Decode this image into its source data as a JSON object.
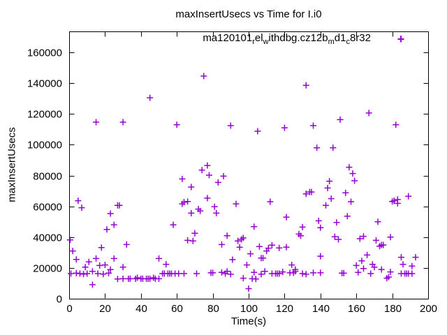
{
  "title": "maxInsertUsecs vs Time for I.i0",
  "axes": {
    "x": {
      "label": "Time(s)",
      "range": [
        0,
        200
      ],
      "ticks": [
        0,
        20,
        40,
        60,
        80,
        100,
        120,
        140,
        160,
        180,
        200
      ]
    },
    "y": {
      "label": "maxInsertUsecs",
      "range": [
        0,
        173600
      ],
      "ticks": [
        0,
        20000,
        40000,
        60000,
        80000,
        100000,
        120000,
        140000,
        160000
      ]
    }
  },
  "legend": {
    "label_plain": "ma120101_rel_withdbg.cz12b_md1_c8r32",
    "segments": [
      {
        "t": "ma120101"
      },
      {
        "t": "r",
        "sub": true
      },
      {
        "t": "el"
      },
      {
        "t": "w",
        "sub": true
      },
      {
        "t": "ithdbg.cz12b"
      },
      {
        "t": "m",
        "sub": true
      },
      {
        "t": "d1"
      },
      {
        "t": "c",
        "sub": true
      },
      {
        "t": "8r32"
      }
    ],
    "marker": "+"
  },
  "colors": {
    "marker": "#9400d3",
    "axis": "#000000",
    "text": "#000000",
    "background": "#ffffff"
  },
  "chart_data": {
    "type": "scatter",
    "title": "maxInsertUsecs vs Time for I.i0",
    "xlabel": "Time(s)",
    "ylabel": "maxInsertUsecs",
    "xlim": [
      0,
      200
    ],
    "ylim": [
      0,
      173600
    ],
    "grid": false,
    "legend_position": "top-right-inside",
    "marker_style": "plus",
    "series": [
      {
        "name": "ma120101_rel_withdbg.cz12b_md1_c8r32",
        "color": "#9400d3",
        "points": [
          [
            0.5,
            38200
          ],
          [
            1,
            16300
          ],
          [
            2,
            31000
          ],
          [
            4,
            25500
          ],
          [
            4,
            16600
          ],
          [
            5,
            63600
          ],
          [
            6,
            16300
          ],
          [
            7,
            59100
          ],
          [
            8,
            16000
          ],
          [
            9,
            20500
          ],
          [
            10,
            16300
          ],
          [
            11,
            23900
          ],
          [
            13,
            17800
          ],
          [
            13,
            9100
          ],
          [
            15,
            114700
          ],
          [
            15,
            26100
          ],
          [
            16,
            16300
          ],
          [
            17,
            21600
          ],
          [
            18,
            33200
          ],
          [
            19,
            16000
          ],
          [
            20,
            21900
          ],
          [
            21,
            45000
          ],
          [
            22,
            16600
          ],
          [
            23,
            55300
          ],
          [
            23,
            18900
          ],
          [
            25,
            48000
          ],
          [
            25,
            26100
          ],
          [
            27,
            60600
          ],
          [
            27,
            12800
          ],
          [
            28,
            60600
          ],
          [
            30,
            114700
          ],
          [
            30,
            20500
          ],
          [
            30,
            13000
          ],
          [
            32,
            35200
          ],
          [
            33,
            13000
          ],
          [
            34,
            13000
          ],
          [
            37,
            13000
          ],
          [
            38,
            13600
          ],
          [
            40,
            13000
          ],
          [
            41,
            13000
          ],
          [
            43,
            13000
          ],
          [
            44,
            13000
          ],
          [
            45,
            130500
          ],
          [
            45,
            13000
          ],
          [
            47,
            13600
          ],
          [
            48,
            13000
          ],
          [
            50,
            26100
          ],
          [
            50,
            13000
          ],
          [
            52,
            16300
          ],
          [
            53,
            16300
          ],
          [
            54,
            22300
          ],
          [
            55,
            16300
          ],
          [
            56,
            16300
          ],
          [
            57,
            16300
          ],
          [
            58,
            48000
          ],
          [
            59,
            16300
          ],
          [
            60,
            113000
          ],
          [
            61,
            16300
          ],
          [
            63,
            77800
          ],
          [
            63,
            61600
          ],
          [
            64,
            62700
          ],
          [
            64,
            16300
          ],
          [
            66,
            63100
          ],
          [
            66,
            37900
          ],
          [
            68,
            72500
          ],
          [
            68,
            55600
          ],
          [
            69,
            37500
          ],
          [
            70,
            42500
          ],
          [
            71,
            16300
          ],
          [
            72,
            58200
          ],
          [
            73,
            57000
          ],
          [
            74,
            83500
          ],
          [
            75,
            144600
          ],
          [
            77,
            86500
          ],
          [
            77,
            65300
          ],
          [
            78,
            80200
          ],
          [
            79,
            16800
          ],
          [
            80,
            16800
          ],
          [
            81,
            59800
          ],
          [
            82,
            55600
          ],
          [
            83,
            75500
          ],
          [
            85,
            35200
          ],
          [
            85,
            17100
          ],
          [
            86,
            79600
          ],
          [
            87,
            16300
          ],
          [
            88,
            40900
          ],
          [
            88,
            17800
          ],
          [
            90,
            112400
          ],
          [
            90,
            15900
          ],
          [
            91,
            25400
          ],
          [
            93,
            61600
          ],
          [
            94,
            37500
          ],
          [
            95,
            33400
          ],
          [
            96,
            38500
          ],
          [
            97,
            39500
          ],
          [
            97,
            13300
          ],
          [
            99,
            21900
          ],
          [
            100,
            6500
          ],
          [
            101,
            29200
          ],
          [
            102,
            13000
          ],
          [
            103,
            46800
          ],
          [
            103,
            17100
          ],
          [
            104,
            12800
          ],
          [
            105,
            108800
          ],
          [
            106,
            33900
          ],
          [
            107,
            26400
          ],
          [
            107,
            15900
          ],
          [
            108,
            26400
          ],
          [
            109,
            17800
          ],
          [
            110,
            31000
          ],
          [
            111,
            32800
          ],
          [
            112,
            63000
          ],
          [
            113,
            34800
          ],
          [
            113,
            16300
          ],
          [
            115,
            16300
          ],
          [
            116,
            16300
          ],
          [
            117,
            33000
          ],
          [
            117,
            16300
          ],
          [
            119,
            17400
          ],
          [
            120,
            111000
          ],
          [
            121,
            53000
          ],
          [
            121,
            33500
          ],
          [
            123,
            16800
          ],
          [
            124,
            21900
          ],
          [
            125,
            16800
          ],
          [
            126,
            19000
          ],
          [
            126,
            17800
          ],
          [
            128,
            42000
          ],
          [
            129,
            40900
          ],
          [
            130,
            46500
          ],
          [
            130,
            16300
          ],
          [
            132,
            138600
          ],
          [
            132,
            68100
          ],
          [
            132,
            15900
          ],
          [
            134,
            69300
          ],
          [
            135,
            69300
          ],
          [
            136,
            112400
          ],
          [
            136,
            16800
          ],
          [
            138,
            98000
          ],
          [
            139,
            50600
          ],
          [
            140,
            46100
          ],
          [
            140,
            27600
          ],
          [
            140,
            16800
          ],
          [
            143,
            60600
          ],
          [
            144,
            71900
          ],
          [
            145,
            76300
          ],
          [
            146,
            65000
          ],
          [
            147,
            98000
          ],
          [
            148,
            40200
          ],
          [
            149,
            49500
          ],
          [
            150,
            38500
          ],
          [
            151,
            116300
          ],
          [
            152,
            16600
          ],
          [
            153,
            16600
          ],
          [
            154,
            68800
          ],
          [
            155,
            53600
          ],
          [
            156,
            85400
          ],
          [
            157,
            63000
          ],
          [
            158,
            81300
          ],
          [
            159,
            76600
          ],
          [
            160,
            21600
          ],
          [
            161,
            17100
          ],
          [
            162,
            39000
          ],
          [
            163,
            24600
          ],
          [
            164,
            40500
          ],
          [
            164,
            19600
          ],
          [
            166,
            28400
          ],
          [
            167,
            120600
          ],
          [
            168,
            16300
          ],
          [
            169,
            22300
          ],
          [
            170,
            20500
          ],
          [
            171,
            37900
          ],
          [
            172,
            50000
          ],
          [
            173,
            34100
          ],
          [
            174,
            34900
          ],
          [
            174,
            19000
          ],
          [
            175,
            34900
          ],
          [
            177,
            13300
          ],
          [
            178,
            14100
          ],
          [
            179,
            40000
          ],
          [
            179,
            17400
          ],
          [
            180,
            63100
          ],
          [
            181,
            63600
          ],
          [
            182,
            113000
          ],
          [
            183,
            64400
          ],
          [
            183,
            61900
          ],
          [
            185,
            26900
          ],
          [
            185,
            16300
          ],
          [
            186,
            22300
          ],
          [
            187,
            16300
          ],
          [
            188,
            16300
          ],
          [
            189,
            66500
          ],
          [
            189,
            16300
          ],
          [
            191,
            21200
          ],
          [
            191,
            16300
          ],
          [
            193,
            26900
          ]
        ]
      }
    ]
  }
}
